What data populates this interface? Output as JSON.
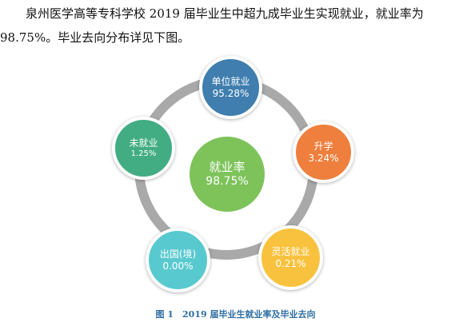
{
  "paragraph": {
    "line1": "泉州医学高等专科学校 2019 届毕业生中超九成毕业生实现就业，就业率为",
    "line2": "98.75%。毕业去向分布详见下图。"
  },
  "diagram": {
    "center": {
      "label": "就业率",
      "value": "98.75%",
      "color": "#7dc35a"
    },
    "nodes": [
      {
        "id": "unit",
        "label": "单位就业",
        "value": "95.28%",
        "color": "#3f7eae"
      },
      {
        "id": "further",
        "label": "升学",
        "value": "3.24%",
        "color": "#ee7f3d"
      },
      {
        "id": "flex",
        "label": "灵活就业",
        "value": "0.21%",
        "color": "#f9c23e"
      },
      {
        "id": "abroad",
        "label": "出国(境)",
        "value": "0.00%",
        "color": "#58c9cf"
      },
      {
        "id": "none",
        "label": "未就业",
        "value": "1.25%",
        "color": "#42ad82"
      }
    ],
    "ring_color": "#a9a9a9"
  },
  "caption": "图 1　2019 届毕业生就业率及毕业去向"
}
